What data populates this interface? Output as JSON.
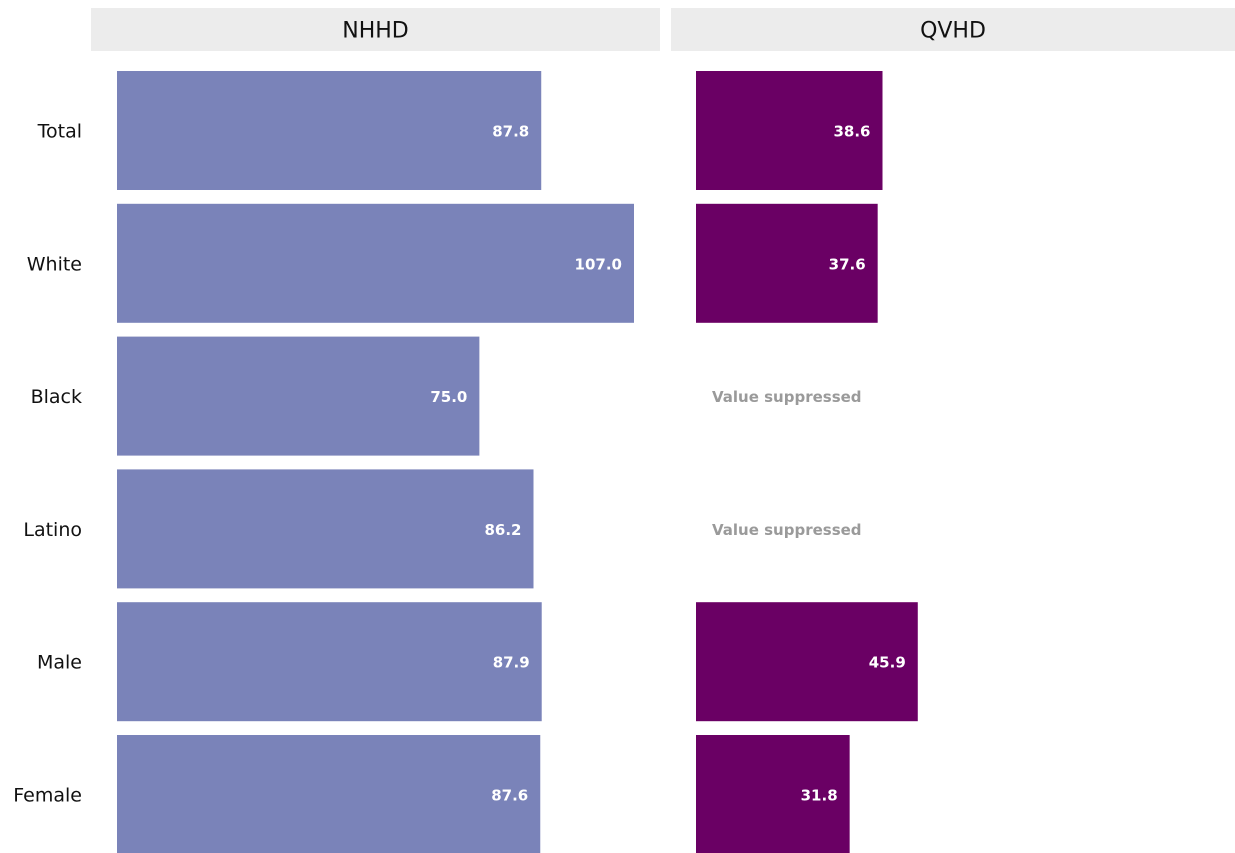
{
  "chart_data": {
    "type": "bar",
    "orientation": "horizontal",
    "layout": "small-multiples",
    "categories": [
      "Total",
      "White",
      "Black",
      "Latino",
      "Male",
      "Female"
    ],
    "series": [
      {
        "name": "NHHD",
        "color": "#7a83b9",
        "values": [
          87.8,
          107.0,
          75.0,
          86.2,
          87.9,
          87.6
        ]
      },
      {
        "name": "QVHD",
        "color": "#6a0064",
        "values": [
          38.6,
          37.6,
          null,
          null,
          45.9,
          31.8
        ]
      }
    ],
    "value_labels": {
      "NHHD": [
        "87.8",
        "107.0",
        "75.0",
        "86.2",
        "87.9",
        "87.6"
      ],
      "QVHD": [
        "38.6",
        "37.6",
        "",
        "",
        "45.9",
        "31.8"
      ]
    },
    "suppressed_label": "Value suppressed",
    "xlim": [
      0,
      117
    ],
    "grid": false,
    "legend": "none"
  },
  "colors": {
    "header_background": "#ececec",
    "suppressed_text": "#9a9a9a"
  }
}
